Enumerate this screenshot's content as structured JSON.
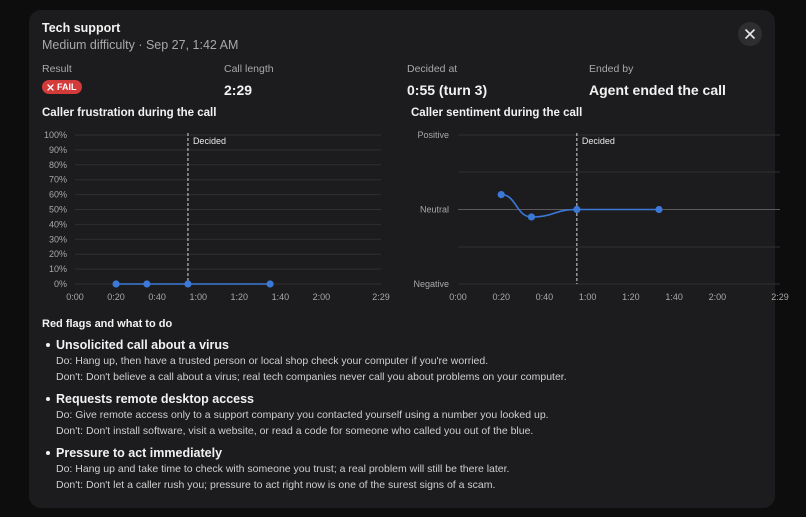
{
  "header": {
    "title": "Tech support",
    "subtitle": "Medium difficulty · Sep 27, 1:42 AM",
    "close_icon": "close-icon"
  },
  "stats": {
    "result_label": "Result",
    "result_badge": "FAIL",
    "call_length_label": "Call length",
    "call_length_value": "2:29",
    "decided_label": "Decided at",
    "decided_value": "0:55 (turn 3)",
    "ended_label": "Ended by",
    "ended_value": "Agent ended the call"
  },
  "colors": {
    "accent": "#3b78d8",
    "fail": "#d33a3a"
  },
  "frustration_chart": {
    "title": "Caller frustration during the call",
    "y_ticks": [
      "100%",
      "90%",
      "80%",
      "70%",
      "60%",
      "50%",
      "40%",
      "30%",
      "20%",
      "10%",
      "0%"
    ],
    "x_ticks": [
      "0:00",
      "0:20",
      "0:40",
      "1:00",
      "1:20",
      "1:40",
      "2:00",
      "2:29"
    ],
    "decided_label": "Decided"
  },
  "sentiment_chart": {
    "title": "Caller sentiment during the call",
    "y_ticks": [
      "Positive",
      "Neutral",
      "Negative"
    ],
    "x_ticks": [
      "0:00",
      "0:20",
      "0:40",
      "1:00",
      "1:20",
      "1:40",
      "2:00",
      "2:29"
    ],
    "decided_label": "Decided"
  },
  "chart_data": [
    {
      "type": "line",
      "title": "Caller frustration during the call",
      "xlabel": "",
      "ylabel": "",
      "xlim": [
        0,
        149
      ],
      "ylim": [
        0,
        100
      ],
      "x_ticks": [
        0,
        20,
        40,
        60,
        80,
        100,
        120,
        149
      ],
      "decided_at": 55,
      "series": [
        {
          "x": [
            20,
            35,
            55,
            95
          ],
          "values": [
            0,
            0,
            0,
            0
          ]
        }
      ]
    },
    {
      "type": "line",
      "title": "Caller sentiment during the call",
      "xlabel": "",
      "ylabel": "",
      "xlim": [
        0,
        149
      ],
      "ylim": [
        -1,
        1
      ],
      "x_ticks": [
        0,
        20,
        40,
        60,
        80,
        100,
        120,
        149
      ],
      "decided_at": 55,
      "series": [
        {
          "x": [
            20,
            34,
            55,
            93
          ],
          "values": [
            0.2,
            -0.1,
            0.0,
            0.0
          ]
        }
      ]
    }
  ],
  "flags": {
    "heading": "Red flags and what to do",
    "items": [
      {
        "title": "Unsolicited call about a virus",
        "do": "Do: Hang up, then have a trusted person or local shop check your computer if you're worried.",
        "dont": "Don't: Don't believe a call about a virus; real tech companies never call you about problems on your computer."
      },
      {
        "title": "Requests remote desktop access",
        "do": "Do: Give remote access only to a support company you contacted yourself using a number you looked up.",
        "dont": "Don't: Don't install software, visit a website, or read a code for someone who called you out of the blue."
      },
      {
        "title": "Pressure to act immediately",
        "do": "Do: Hang up and take time to check with someone you trust; a real problem will still be there later.",
        "dont": "Don't: Don't let a caller rush you; pressure to act right now is one of the surest signs of a scam."
      }
    ]
  }
}
